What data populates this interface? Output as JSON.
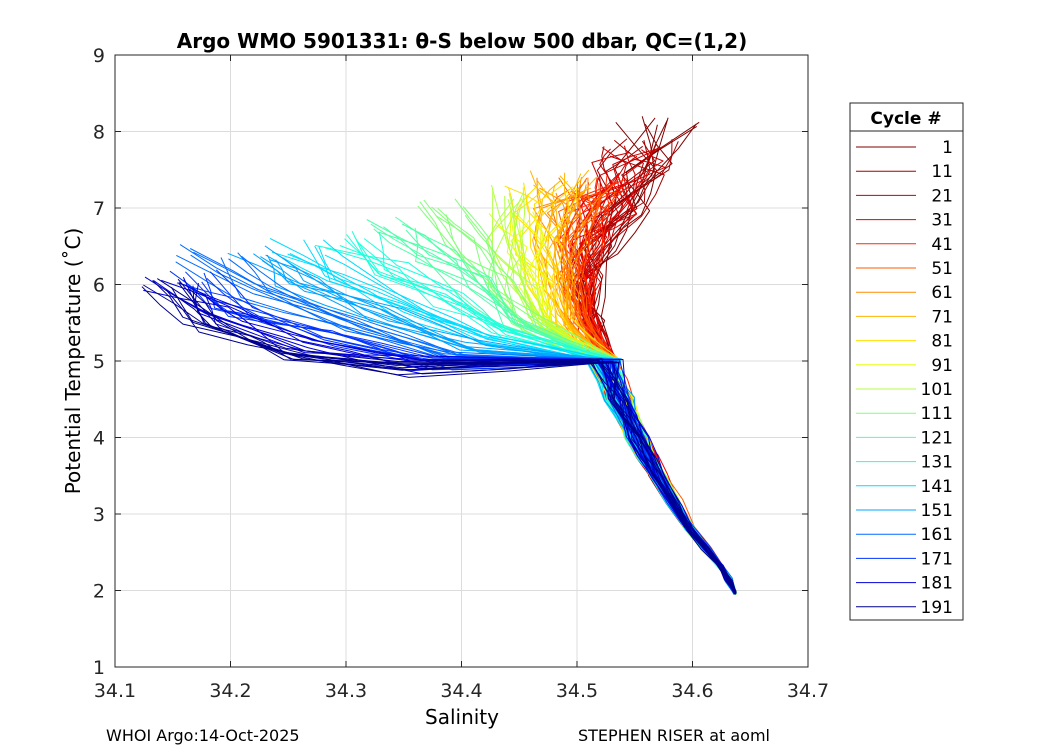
{
  "chart_data": {
    "type": "line",
    "title": "Argo WMO 5901331: θ-S below 500 dbar,  QC=(1,2)",
    "xlabel": "Salinity",
    "ylabel": "Potential Temperature (˚C)",
    "xlim": [
      34.1,
      34.7
    ],
    "ylim": [
      1,
      9
    ],
    "xticks": [
      "34.1",
      "34.2",
      "34.3",
      "34.4",
      "34.5",
      "34.6",
      "34.7"
    ],
    "yticks": [
      "1",
      "2",
      "3",
      "4",
      "5",
      "6",
      "7",
      "8",
      "9"
    ],
    "grid": true,
    "legend": {
      "title": "Cycle #",
      "position": "right",
      "entries": [
        "1",
        "11",
        "21",
        "31",
        "41",
        "51",
        "61",
        "71",
        "81",
        "91",
        "101",
        "111",
        "121",
        "131",
        "141",
        "151",
        "161",
        "171",
        "181",
        "191"
      ],
      "colors": [
        "#800000",
        "#a50000",
        "#c80000",
        "#e80000",
        "#ff2a00",
        "#ff5a00",
        "#ff8c00",
        "#ffb400",
        "#ffdf00",
        "#e6ff14",
        "#b4ff46",
        "#82ff78",
        "#50ffaa",
        "#1effdc",
        "#00dcff",
        "#00a4ff",
        "#006cff",
        "#0034ff",
        "#0000d6",
        "#00008f"
      ]
    },
    "series_common": {
      "deep_end": [
        34.637,
        1.97
      ],
      "knots": [
        {
          "theta": 2.3,
          "s": 34.625
        },
        {
          "theta": 2.8,
          "s": 34.598
        },
        {
          "theta": 3.5,
          "s": 34.57
        },
        {
          "theta": 4.0,
          "s": 34.552
        },
        {
          "theta": 4.5,
          "s": 34.536
        },
        {
          "theta": 5.0,
          "s": 34.524
        }
      ]
    },
    "series": [
      {
        "name": "1",
        "upper": [
          [
            5.5,
            34.515
          ],
          [
            6.0,
            34.509
          ],
          [
            6.5,
            34.52
          ],
          [
            7.0,
            34.538
          ],
          [
            7.5,
            34.555
          ],
          [
            8.1,
            34.57
          ]
        ]
      },
      {
        "name": "11",
        "upper": [
          [
            5.5,
            34.514
          ],
          [
            6.0,
            34.507
          ],
          [
            6.5,
            34.517
          ],
          [
            7.0,
            34.533
          ],
          [
            7.5,
            34.55
          ],
          [
            7.8,
            34.56
          ]
        ]
      },
      {
        "name": "21",
        "upper": [
          [
            5.5,
            34.512
          ],
          [
            6.0,
            34.505
          ],
          [
            6.5,
            34.512
          ],
          [
            7.0,
            34.527
          ],
          [
            7.5,
            34.545
          ],
          [
            7.7,
            34.552
          ]
        ]
      },
      {
        "name": "31",
        "upper": [
          [
            5.5,
            34.51
          ],
          [
            6.0,
            34.503
          ],
          [
            6.5,
            34.508
          ],
          [
            7.0,
            34.52
          ],
          [
            7.4,
            34.532
          ]
        ]
      },
      {
        "name": "41",
        "upper": [
          [
            5.5,
            34.508
          ],
          [
            6.0,
            34.5
          ],
          [
            6.5,
            34.503
          ],
          [
            7.0,
            34.512
          ],
          [
            7.3,
            34.52
          ]
        ]
      },
      {
        "name": "51",
        "upper": [
          [
            5.5,
            34.5
          ],
          [
            6.0,
            34.492
          ],
          [
            6.5,
            34.494
          ],
          [
            7.0,
            34.5
          ],
          [
            7.3,
            34.505
          ]
        ]
      },
      {
        "name": "61",
        "upper": [
          [
            5.5,
            34.494
          ],
          [
            6.0,
            34.487
          ],
          [
            6.5,
            34.487
          ],
          [
            7.0,
            34.49
          ],
          [
            7.3,
            34.495
          ]
        ]
      },
      {
        "name": "71",
        "upper": [
          [
            5.5,
            34.49
          ],
          [
            6.0,
            34.482
          ],
          [
            6.5,
            34.48
          ],
          [
            7.0,
            34.481
          ],
          [
            7.4,
            34.485
          ]
        ]
      },
      {
        "name": "81",
        "upper": [
          [
            5.5,
            34.484
          ],
          [
            6.0,
            34.475
          ],
          [
            6.5,
            34.47
          ],
          [
            7.0,
            34.468
          ],
          [
            7.3,
            34.47
          ]
        ]
      },
      {
        "name": "91",
        "upper": [
          [
            5.5,
            34.475
          ],
          [
            6.0,
            34.462
          ],
          [
            6.5,
            34.455
          ],
          [
            6.9,
            34.45
          ]
        ]
      },
      {
        "name": "101",
        "upper": [
          [
            5.5,
            34.466
          ],
          [
            6.0,
            34.45
          ],
          [
            6.5,
            34.44
          ],
          [
            7.2,
            34.445
          ]
        ]
      },
      {
        "name": "111",
        "upper": [
          [
            5.5,
            34.455
          ],
          [
            6.0,
            34.43
          ],
          [
            6.5,
            34.41
          ],
          [
            7.0,
            34.38
          ]
        ]
      },
      {
        "name": "121",
        "upper": [
          [
            5.5,
            34.445
          ],
          [
            6.0,
            34.41
          ],
          [
            6.4,
            34.38
          ],
          [
            6.8,
            34.34
          ]
        ]
      },
      {
        "name": "131",
        "upper": [
          [
            5.4,
            34.435
          ],
          [
            5.8,
            34.39
          ],
          [
            6.2,
            34.34
          ],
          [
            6.6,
            34.3
          ]
        ]
      },
      {
        "name": "141",
        "upper": [
          [
            5.3,
            34.425
          ],
          [
            5.7,
            34.36
          ],
          [
            6.1,
            34.3
          ],
          [
            6.5,
            34.26
          ]
        ]
      },
      {
        "name": "151",
        "upper": [
          [
            5.2,
            34.41
          ],
          [
            5.6,
            34.33
          ],
          [
            6.0,
            34.26
          ],
          [
            6.4,
            34.22
          ]
        ]
      },
      {
        "name": "161",
        "upper": [
          [
            5.1,
            34.395
          ],
          [
            5.5,
            34.3
          ],
          [
            5.9,
            34.22
          ],
          [
            6.4,
            34.18
          ]
        ]
      },
      {
        "name": "171",
        "upper": [
          [
            5.0,
            34.38
          ],
          [
            5.3,
            34.28
          ],
          [
            5.7,
            34.2
          ],
          [
            6.1,
            34.16
          ]
        ]
      },
      {
        "name": "181",
        "upper": [
          [
            4.95,
            34.36
          ],
          [
            5.2,
            34.26
          ],
          [
            5.6,
            34.19
          ],
          [
            6.0,
            34.15
          ]
        ]
      },
      {
        "name": "191",
        "upper": [
          [
            4.9,
            34.35
          ],
          [
            5.1,
            34.25
          ],
          [
            5.5,
            34.18
          ],
          [
            6.0,
            34.14
          ]
        ]
      }
    ]
  },
  "footer": {
    "left": "WHOI Argo:14-Oct-2025",
    "right": "STEPHEN RISER at aoml"
  }
}
